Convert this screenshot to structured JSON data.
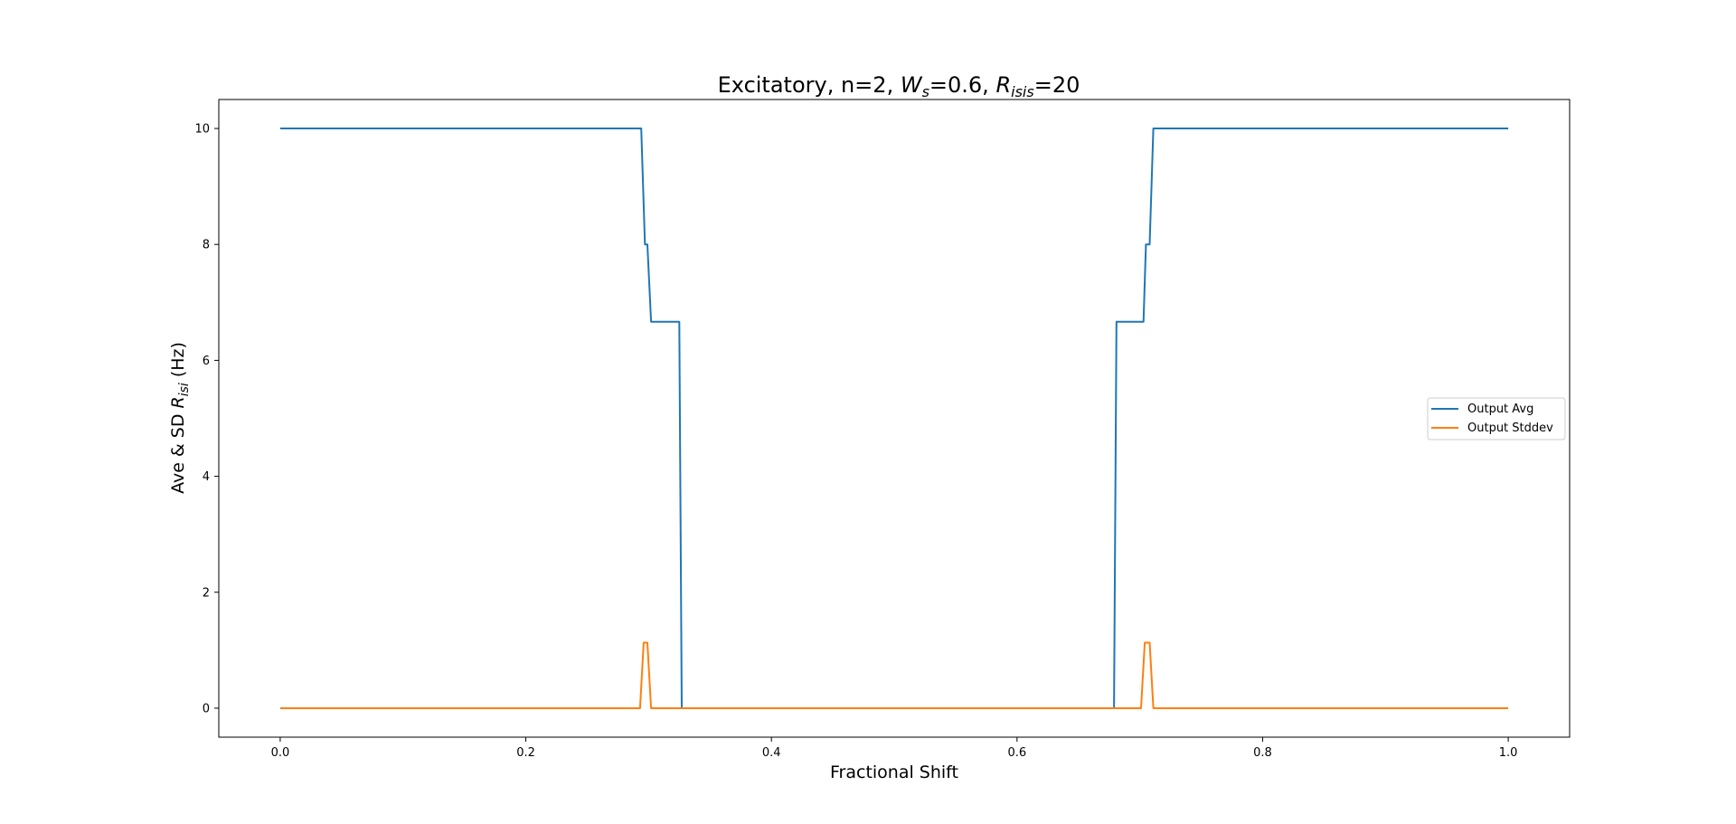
{
  "chart_data": {
    "type": "line",
    "title": {
      "prefix": "Excitatory, n=2, ",
      "w_var": "W",
      "w_sub": "s",
      "w_value": "=0.6, ",
      "r_var": "R",
      "r_sub": "isis",
      "r_value": "=20"
    },
    "xlabel": "Fractional Shift",
    "ylabel": {
      "prefix": "Ave & SD ",
      "var": "R",
      "sub": "isi",
      "suffix": " (Hz)"
    },
    "xlim": [
      -0.05,
      1.05
    ],
    "ylim": [
      -0.5,
      10.5
    ],
    "xticks": [
      0.0,
      0.2,
      0.4,
      0.6,
      0.8,
      1.0
    ],
    "xtick_labels": [
      "0.0",
      "0.2",
      "0.4",
      "0.6",
      "0.8",
      "1.0"
    ],
    "yticks": [
      0,
      2,
      4,
      6,
      8,
      10
    ],
    "ytick_labels": [
      "0",
      "2",
      "4",
      "6",
      "8",
      "10"
    ],
    "grid": false,
    "legend_position": "center-right",
    "series": [
      {
        "name": "Output Avg",
        "color": "#1f77b4",
        "points": [
          [
            0.0,
            10
          ],
          [
            0.294,
            10
          ],
          [
            0.297,
            8
          ],
          [
            0.299,
            8
          ],
          [
            0.302,
            6.667
          ],
          [
            0.325,
            6.667
          ],
          [
            0.327,
            0
          ],
          [
            0.679,
            0
          ],
          [
            0.681,
            6.667
          ],
          [
            0.703,
            6.667
          ],
          [
            0.705,
            8
          ],
          [
            0.708,
            8
          ],
          [
            0.711,
            10
          ],
          [
            1.0,
            10
          ]
        ]
      },
      {
        "name": "Output Stddev",
        "color": "#ff7f0e",
        "points": [
          [
            0.0,
            0
          ],
          [
            0.293,
            0
          ],
          [
            0.296,
            1.13
          ],
          [
            0.299,
            1.13
          ],
          [
            0.302,
            0
          ],
          [
            0.701,
            0
          ],
          [
            0.704,
            1.13
          ],
          [
            0.708,
            1.13
          ],
          [
            0.711,
            0
          ],
          [
            1.0,
            0
          ]
        ]
      }
    ]
  }
}
